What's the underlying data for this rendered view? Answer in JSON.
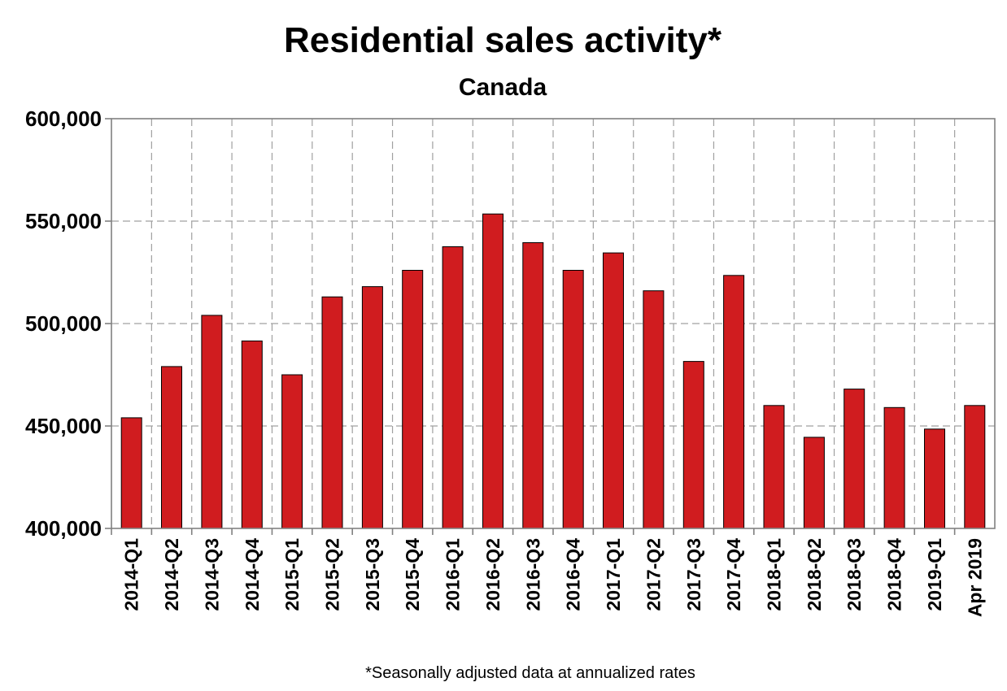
{
  "chart_data": {
    "type": "bar",
    "title": "Residential sales activity*",
    "subtitle": "Canada",
    "footnote": "*Seasonally adjusted data at annualized rates",
    "xlabel": "",
    "ylabel": "",
    "ylim": [
      400000,
      600000
    ],
    "yticks": [
      400000,
      450000,
      500000,
      550000,
      600000
    ],
    "ytick_labels": [
      "400,000",
      "450,000",
      "500,000",
      "550,000",
      "600,000"
    ],
    "grid": true,
    "bar_color": "#d01c1f",
    "categories": [
      "2014-Q1",
      "2014-Q2",
      "2014-Q3",
      "2014-Q4",
      "2015-Q1",
      "2015-Q2",
      "2015-Q3",
      "2015-Q4",
      "2016-Q1",
      "2016-Q2",
      "2016-Q3",
      "2016-Q4",
      "2017-Q1",
      "2017-Q2",
      "2017-Q3",
      "2017-Q4",
      "2018-Q1",
      "2018-Q2",
      "2018-Q3",
      "2018-Q4",
      "2019-Q1",
      "Apr 2019"
    ],
    "values": [
      454000,
      479000,
      504000,
      491500,
      475000,
      513000,
      518000,
      526000,
      537500,
      553500,
      539500,
      526000,
      534500,
      516000,
      481500,
      523500,
      460000,
      444500,
      468000,
      459000,
      448500,
      460000
    ]
  }
}
